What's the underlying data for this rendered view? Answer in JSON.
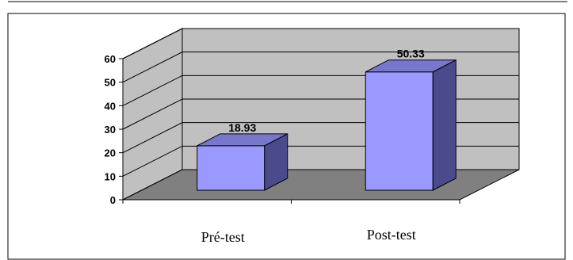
{
  "chart_data": {
    "type": "bar",
    "categories": [
      "Pré-test",
      "Post-test"
    ],
    "values": [
      18.93,
      50.33
    ],
    "data_labels": [
      "18.93",
      "50.33"
    ],
    "ylim": [
      0,
      60
    ],
    "yticks": [
      "0",
      "10",
      "20",
      "30",
      "40",
      "50",
      "60"
    ],
    "grid": true,
    "three_d": true,
    "colors": {
      "bar_front": "#9999FF",
      "bar_side": "#4A4A8C",
      "bar_top": "#7777CC",
      "back_wall": "#C0C0C0",
      "side_wall": "#C0C0C0",
      "floor": "#808080",
      "grid": "#000000"
    }
  }
}
